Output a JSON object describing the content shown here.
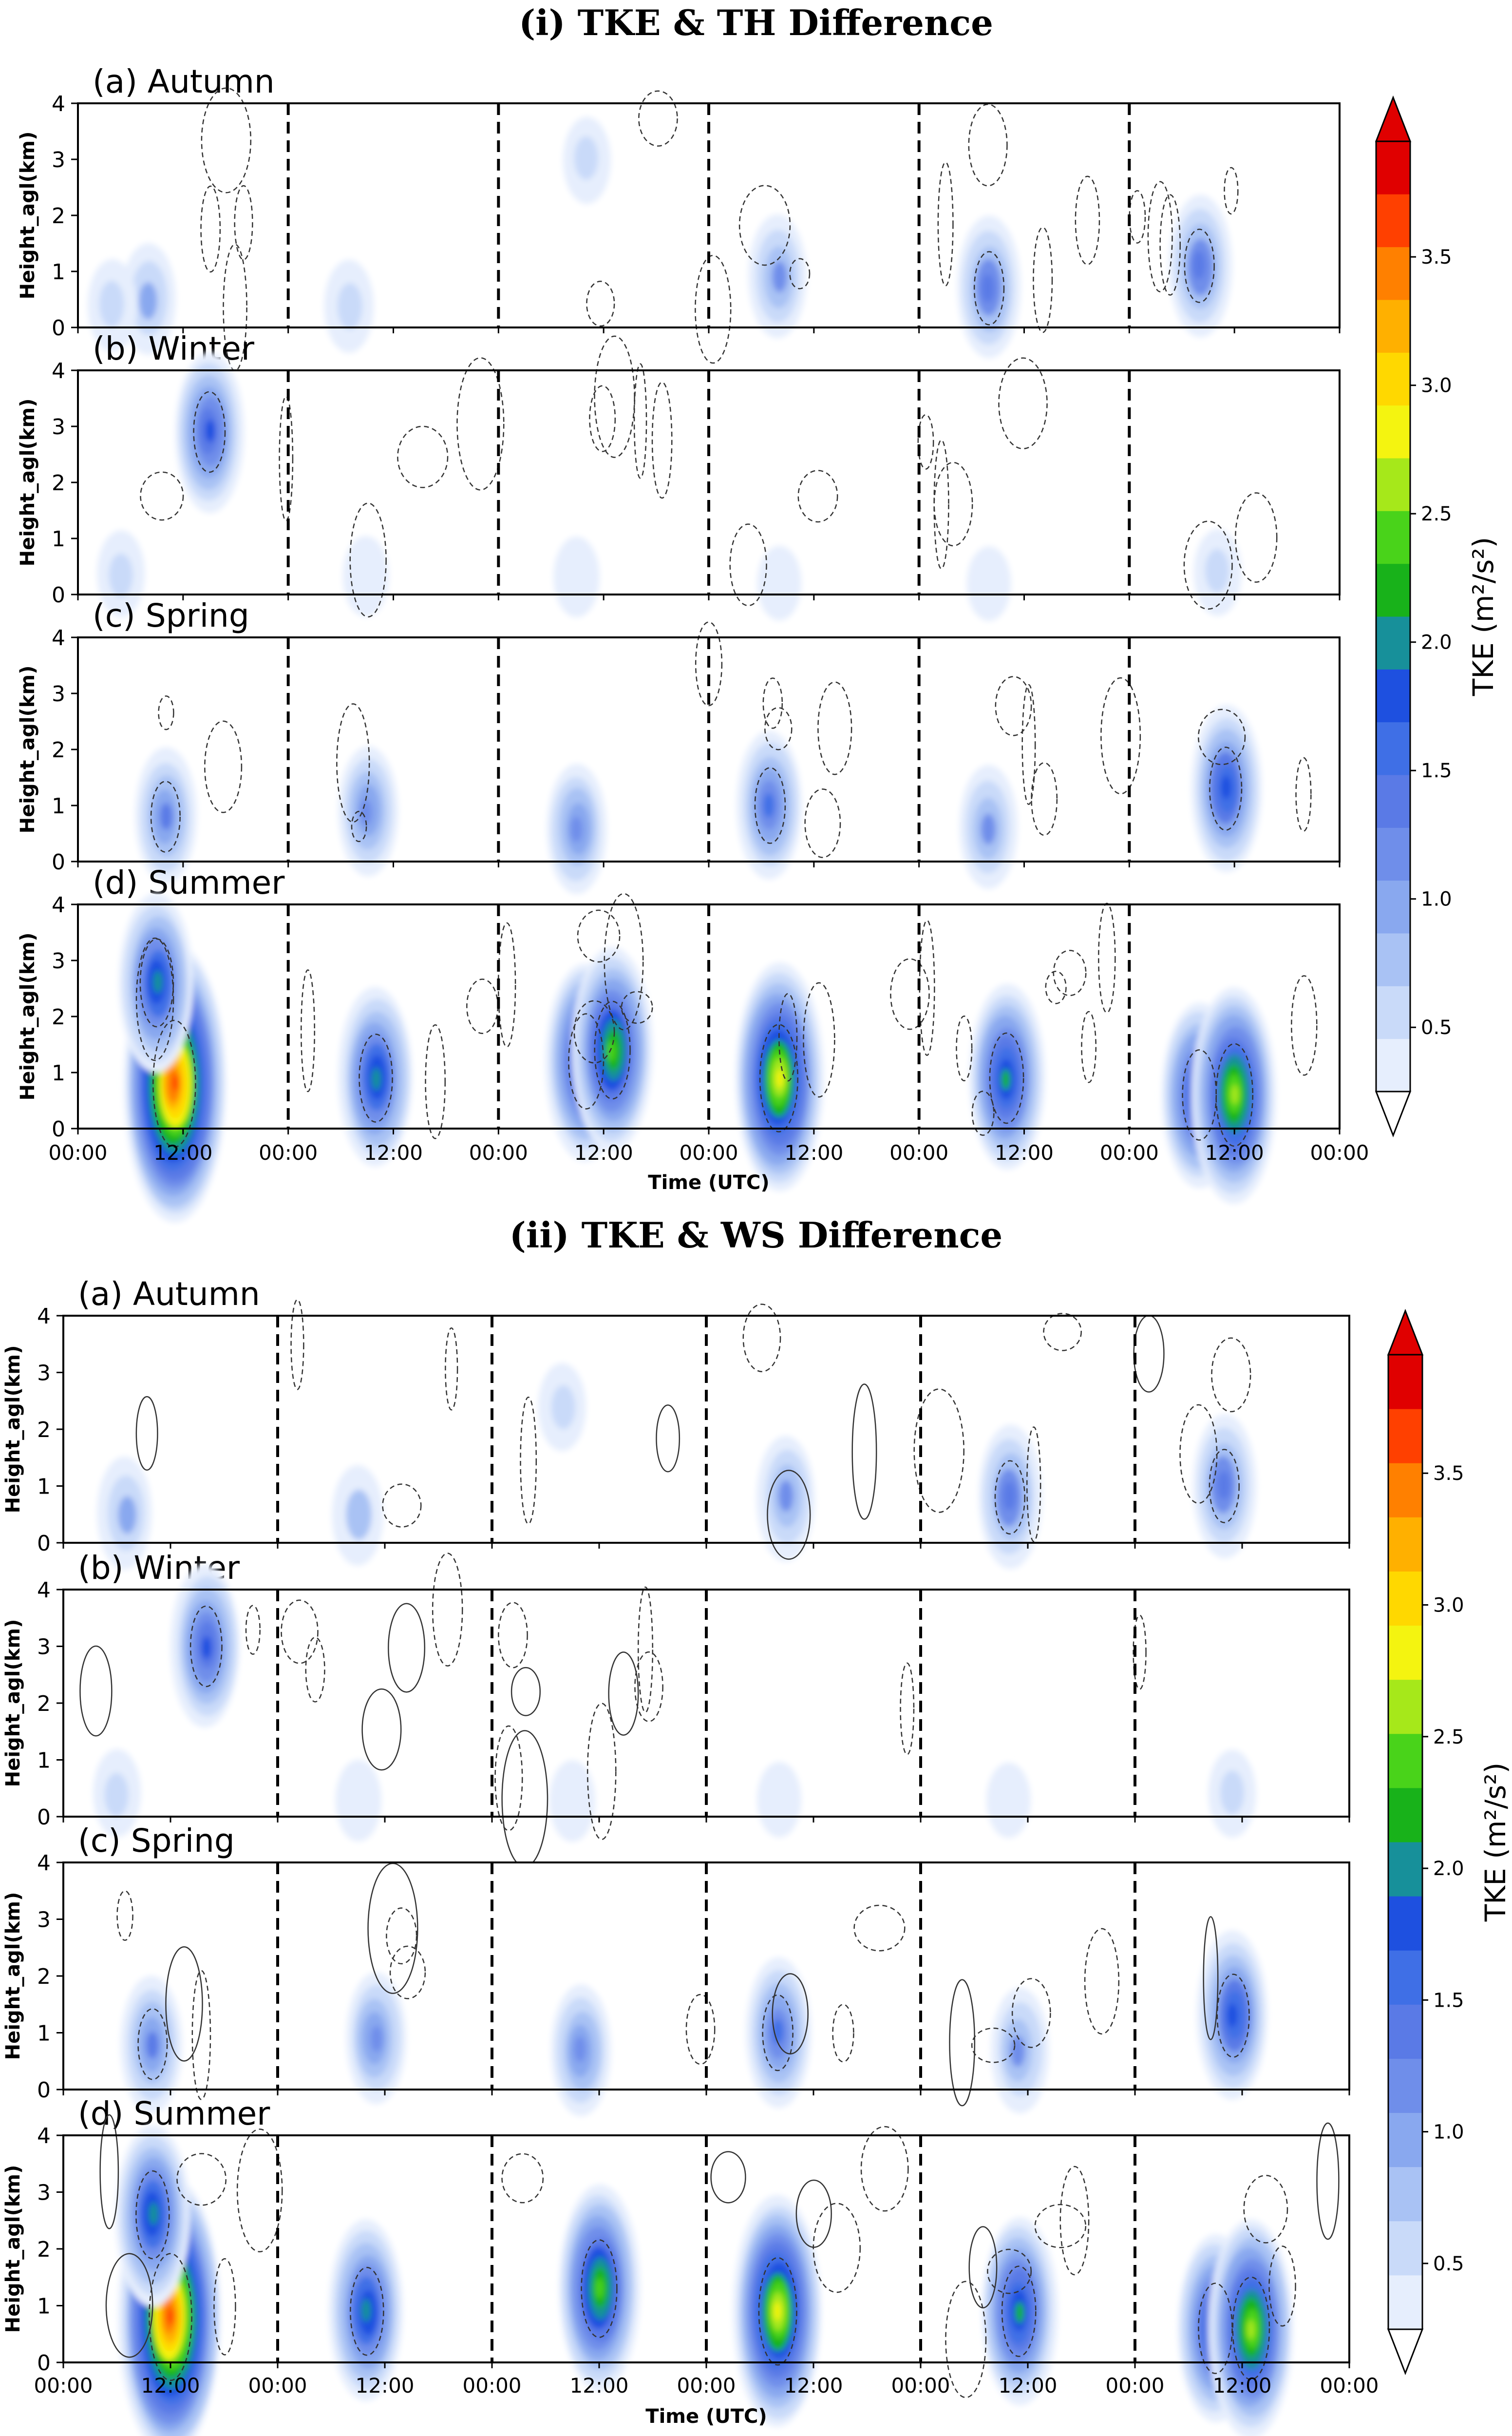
{
  "figure": {
    "units": "m^2/s^2",
    "blob_colors": [
      "#e6eefd",
      "#c9daf9",
      "#a9c2f4",
      "#89a8ef",
      "#6f8eea",
      "#5a7ae6",
      "#3f6fe6",
      "#1e50e0",
      "#17909a",
      "#18b21a",
      "#49d31a",
      "#a6e81a",
      "#f4f410",
      "#ffd800",
      "#ffb000",
      "#ff8000",
      "#ff4000",
      "#e00000"
    ]
  },
  "chart_data": [
    {
      "type": "contour",
      "title": "(i) TKE & TH Difference",
      "xlabel": "Time (UTC)",
      "ylabel": "Height_agl(km)",
      "ylim": [
        0,
        4
      ],
      "yticks": [
        "0",
        "1",
        "2",
        "3",
        "4"
      ],
      "xticks": [
        "00:00",
        "12:00",
        "00:00",
        "12:00",
        "00:00",
        "12:00",
        "00:00",
        "12:00",
        "00:00",
        "12:00",
        "00:00",
        "12:00",
        "00:00"
      ],
      "xlim_hours": [
        0,
        144
      ],
      "day_boundaries_hours": [
        24,
        48,
        72,
        96,
        120
      ],
      "colorbar": {
        "label": "TKE (m²/s²)",
        "ticks": [
          0.5,
          1.0,
          1.5,
          2.0,
          2.5,
          3.0,
          3.5
        ],
        "tick_labels": [
          "0.5",
          "1.0",
          "1.5",
          "2.0",
          "2.5",
          "3.0",
          "3.5"
        ],
        "range": [
          0.25,
          3.95
        ]
      },
      "panels": [
        {
          "label": "(a) Autumn",
          "tke_cores": [
            {
              "t": 8,
              "z": 0.5,
              "max": 0.9
            },
            {
              "t": 4,
              "z": 0.4,
              "max": 0.6
            },
            {
              "t": 31,
              "z": 0.4,
              "max": 0.6
            },
            {
              "t": 58,
              "z": 3.0,
              "max": 0.5
            },
            {
              "t": 80,
              "z": 0.9,
              "max": 1.1
            },
            {
              "t": 104,
              "z": 0.7,
              "max": 1.4
            },
            {
              "t": 128,
              "z": 1.1,
              "max": 1.4
            }
          ]
        },
        {
          "label": "(b) Winter",
          "tke_cores": [
            {
              "t": 15,
              "z": 2.9,
              "max": 1.7
            },
            {
              "t": 5,
              "z": 0.35,
              "max": 0.5
            },
            {
              "t": 33,
              "z": 0.3,
              "max": 0.4
            },
            {
              "t": 57,
              "z": 0.3,
              "max": 0.4
            },
            {
              "t": 80,
              "z": 0.2,
              "max": 0.3
            },
            {
              "t": 104,
              "z": 0.2,
              "max": 0.3
            },
            {
              "t": 130,
              "z": 0.4,
              "max": 0.5
            }
          ]
        },
        {
          "label": "(c) Spring",
          "tke_cores": [
            {
              "t": 10,
              "z": 0.8,
              "max": 1.3
            },
            {
              "t": 33,
              "z": 0.9,
              "max": 1.2
            },
            {
              "t": 57,
              "z": 0.6,
              "max": 1.2
            },
            {
              "t": 79,
              "z": 1.0,
              "max": 1.5
            },
            {
              "t": 104,
              "z": 0.6,
              "max": 1.1
            },
            {
              "t": 131,
              "z": 1.3,
              "max": 1.8
            }
          ]
        },
        {
          "label": "(d) Summer",
          "tke_cores": [
            {
              "t": 11,
              "z": 0.8,
              "max": 3.6
            },
            {
              "t": 9,
              "z": 2.6,
              "max": 2.0
            },
            {
              "t": 34,
              "z": 0.9,
              "max": 2.0
            },
            {
              "t": 58,
              "z": 1.2,
              "max": 2.3
            },
            {
              "t": 61,
              "z": 1.4,
              "max": 2.4
            },
            {
              "t": 80,
              "z": 0.9,
              "max": 2.8
            },
            {
              "t": 106,
              "z": 0.9,
              "max": 2.1
            },
            {
              "t": 128,
              "z": 0.6,
              "max": 2.1
            },
            {
              "t": 132,
              "z": 0.6,
              "max": 2.6
            }
          ]
        }
      ]
    },
    {
      "type": "contour",
      "title": "(ii) TKE & WS Difference",
      "xlabel": "Time (UTC)",
      "ylabel": "Height_agl(km)",
      "ylim": [
        0,
        4
      ],
      "yticks": [
        "0",
        "1",
        "2",
        "3",
        "4"
      ],
      "xticks": [
        "00:00",
        "12:00",
        "00:00",
        "12:00",
        "00:00",
        "12:00",
        "00:00",
        "12:00",
        "00:00",
        "12:00",
        "00:00",
        "12:00",
        "00:00"
      ],
      "xlim_hours": [
        0,
        144
      ],
      "day_boundaries_hours": [
        24,
        48,
        72,
        96,
        120
      ],
      "colorbar": {
        "label": "TKE (m²/s²)",
        "ticks": [
          0.5,
          1.0,
          1.5,
          2.0,
          2.5,
          3.0,
          3.5
        ],
        "tick_labels": [
          "0.5",
          "1.0",
          "1.5",
          "2.0",
          "2.5",
          "3.0",
          "3.5"
        ],
        "range": [
          0.25,
          3.95
        ]
      },
      "panels": [
        {
          "label": "(a) Autumn",
          "tke_cores": [
            {
              "t": 7,
              "z": 0.5,
              "max": 0.9
            },
            {
              "t": 33,
              "z": 0.5,
              "max": 0.7
            },
            {
              "t": 56,
              "z": 2.4,
              "max": 0.5
            },
            {
              "t": 81,
              "z": 0.8,
              "max": 1.1
            },
            {
              "t": 106,
              "z": 0.8,
              "max": 1.4
            },
            {
              "t": 130,
              "z": 1.0,
              "max": 1.4
            }
          ]
        },
        {
          "label": "(b) Winter",
          "tke_cores": [
            {
              "t": 16,
              "z": 3.0,
              "max": 1.7
            },
            {
              "t": 6,
              "z": 0.4,
              "max": 0.5
            },
            {
              "t": 33,
              "z": 0.3,
              "max": 0.4
            },
            {
              "t": 57,
              "z": 0.3,
              "max": 0.4
            },
            {
              "t": 80,
              "z": 0.3,
              "max": 0.3
            },
            {
              "t": 106,
              "z": 0.3,
              "max": 0.3
            },
            {
              "t": 131,
              "z": 0.4,
              "max": 0.5
            }
          ]
        },
        {
          "label": "(c) Spring",
          "tke_cores": [
            {
              "t": 10,
              "z": 0.8,
              "max": 1.3
            },
            {
              "t": 35,
              "z": 0.9,
              "max": 1.2
            },
            {
              "t": 58,
              "z": 0.7,
              "max": 1.2
            },
            {
              "t": 80,
              "z": 1.0,
              "max": 1.5
            },
            {
              "t": 107,
              "z": 0.7,
              "max": 1.1
            },
            {
              "t": 131,
              "z": 1.3,
              "max": 1.8
            }
          ]
        },
        {
          "label": "(d) Summer",
          "tke_cores": [
            {
              "t": 12,
              "z": 0.8,
              "max": 3.6
            },
            {
              "t": 10,
              "z": 2.6,
              "max": 2.0
            },
            {
              "t": 34,
              "z": 0.9,
              "max": 2.0
            },
            {
              "t": 60,
              "z": 1.3,
              "max": 2.4
            },
            {
              "t": 80,
              "z": 0.9,
              "max": 2.8
            },
            {
              "t": 107,
              "z": 0.9,
              "max": 2.1
            },
            {
              "t": 129,
              "z": 0.6,
              "max": 2.1
            },
            {
              "t": 133,
              "z": 0.6,
              "max": 2.6
            }
          ]
        }
      ]
    }
  ]
}
